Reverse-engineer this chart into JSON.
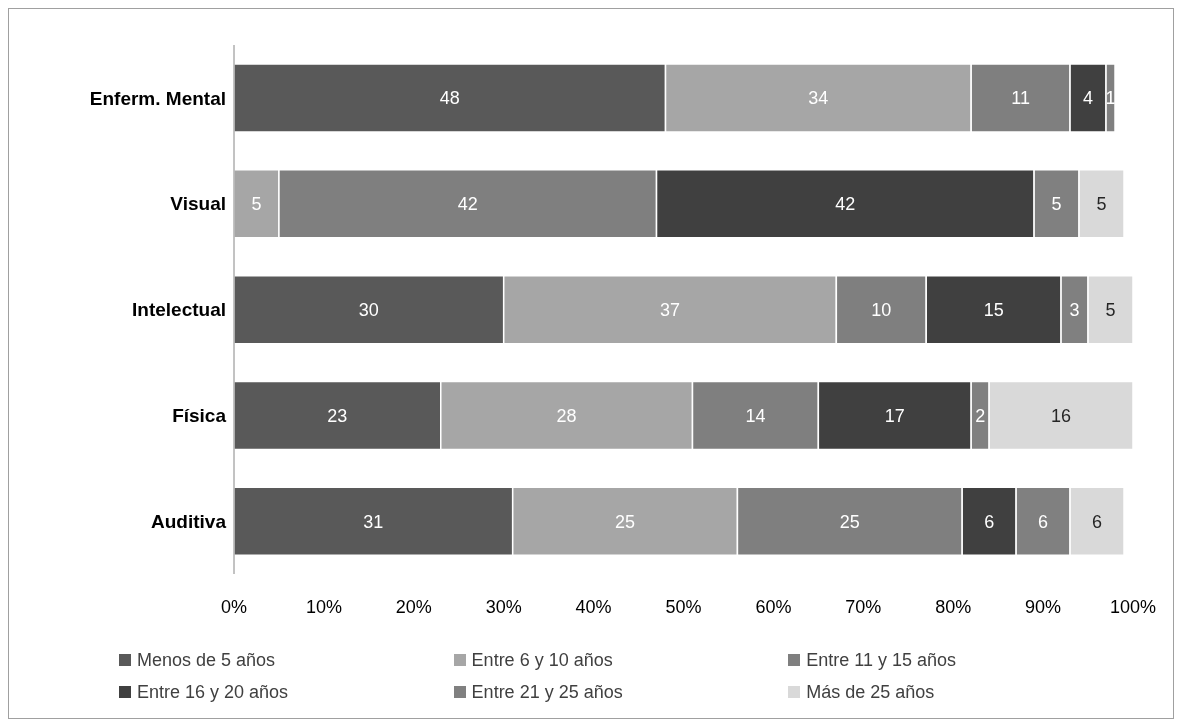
{
  "chart_data": {
    "type": "bar",
    "orientation": "horizontal",
    "stacked": true,
    "data_labels": true,
    "legend": "bottom",
    "categories": [
      "Enferm. Mental",
      "Visual",
      "Intelectual",
      "Física",
      "Auditiva"
    ],
    "xlim": [
      0,
      100
    ],
    "xticks": [
      {
        "value": 0,
        "label": "0%"
      },
      {
        "value": 10,
        "label": "10%"
      },
      {
        "value": 20,
        "label": "20%"
      },
      {
        "value": 30,
        "label": "30%"
      },
      {
        "value": 40,
        "label": "40%"
      },
      {
        "value": 50,
        "label": "50%"
      },
      {
        "value": 60,
        "label": "60%"
      },
      {
        "value": 70,
        "label": "70%"
      },
      {
        "value": 80,
        "label": "80%"
      },
      {
        "value": 90,
        "label": "90%"
      },
      {
        "value": 100,
        "label": "100%"
      }
    ],
    "series": [
      {
        "name": "Menos de 5 años",
        "color": "#595959",
        "values": [
          48,
          null,
          30,
          23,
          31
        ]
      },
      {
        "name": "Entre 6 y 10 años",
        "color": "#a6a6a6",
        "values": [
          34,
          5,
          37,
          28,
          25
        ]
      },
      {
        "name": "Entre 11 y 15 años",
        "color": "#7f7f7f",
        "values": [
          11,
          42,
          10,
          14,
          25
        ]
      },
      {
        "name": "Entre 16 y 20 años",
        "color": "#404040",
        "values": [
          4,
          42,
          15,
          17,
          6
        ]
      },
      {
        "name": "Entre 21 y 25 años",
        "color": "#808080",
        "values": [
          1,
          5,
          3,
          2,
          6
        ]
      },
      {
        "name": "Más de 25 años",
        "color": "#d9d9d9",
        "values": [
          null,
          5,
          5,
          16,
          6
        ]
      }
    ]
  }
}
